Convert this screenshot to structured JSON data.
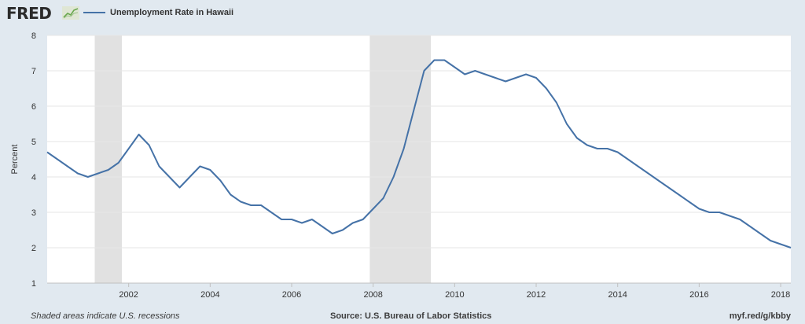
{
  "header": {
    "logo": "FRED",
    "logo_icon": "line-chart-icon"
  },
  "colors": {
    "background": "#e1e9f0",
    "plot_background": "#ffffff",
    "series": "#4572a7",
    "recession_shade": "#e1e1e1",
    "grid": "#e6e6e6"
  },
  "footer": {
    "note": "Shaded areas indicate U.S. recessions",
    "source": "Source: U.S. Bureau of Labor Statistics",
    "link": "myf.red/g/kbby"
  },
  "chart_data": {
    "type": "line",
    "title": "",
    "xlabel": "",
    "ylabel": "Percent",
    "ylim": [
      1,
      8
    ],
    "yticks": [
      1,
      2,
      3,
      4,
      5,
      6,
      7,
      8
    ],
    "xlim": [
      "2000-01",
      "2018-04"
    ],
    "xticks": [
      {
        "date": "2002-01",
        "label": "2002"
      },
      {
        "date": "2004-01",
        "label": "2004"
      },
      {
        "date": "2006-01",
        "label": "2006"
      },
      {
        "date": "2008-01",
        "label": "2008"
      },
      {
        "date": "2010-01",
        "label": "2010"
      },
      {
        "date": "2012-01",
        "label": "2012"
      },
      {
        "date": "2014-01",
        "label": "2014"
      },
      {
        "date": "2016-01",
        "label": "2016"
      },
      {
        "date": "2018-01",
        "label": "2018"
      }
    ],
    "grid": true,
    "legend_position": "top-left",
    "recessions": [
      {
        "start": "2001-03",
        "end": "2001-11"
      },
      {
        "start": "2007-12",
        "end": "2009-06"
      }
    ],
    "series": [
      {
        "name": "Unemployment Rate in Hawaii",
        "color": "#4572a7",
        "points": [
          [
            "2000-01",
            4.7
          ],
          [
            "2000-04",
            4.5
          ],
          [
            "2000-07",
            4.3
          ],
          [
            "2000-10",
            4.1
          ],
          [
            "2001-01",
            4.0
          ],
          [
            "2001-04",
            4.1
          ],
          [
            "2001-07",
            4.2
          ],
          [
            "2001-10",
            4.4
          ],
          [
            "2002-01",
            4.8
          ],
          [
            "2002-04",
            5.2
          ],
          [
            "2002-07",
            4.9
          ],
          [
            "2002-10",
            4.3
          ],
          [
            "2003-01",
            4.0
          ],
          [
            "2003-04",
            3.7
          ],
          [
            "2003-07",
            4.0
          ],
          [
            "2003-10",
            4.3
          ],
          [
            "2004-01",
            4.2
          ],
          [
            "2004-04",
            3.9
          ],
          [
            "2004-07",
            3.5
          ],
          [
            "2004-10",
            3.3
          ],
          [
            "2005-01",
            3.2
          ],
          [
            "2005-04",
            3.2
          ],
          [
            "2005-07",
            3.0
          ],
          [
            "2005-10",
            2.8
          ],
          [
            "2006-01",
            2.8
          ],
          [
            "2006-04",
            2.7
          ],
          [
            "2006-07",
            2.8
          ],
          [
            "2006-10",
            2.6
          ],
          [
            "2007-01",
            2.4
          ],
          [
            "2007-04",
            2.5
          ],
          [
            "2007-07",
            2.7
          ],
          [
            "2007-10",
            2.8
          ],
          [
            "2008-01",
            3.1
          ],
          [
            "2008-04",
            3.4
          ],
          [
            "2008-07",
            4.0
          ],
          [
            "2008-10",
            4.8
          ],
          [
            "2009-01",
            5.9
          ],
          [
            "2009-04",
            7.0
          ],
          [
            "2009-07",
            7.3
          ],
          [
            "2009-10",
            7.3
          ],
          [
            "2010-01",
            7.1
          ],
          [
            "2010-04",
            6.9
          ],
          [
            "2010-07",
            7.0
          ],
          [
            "2010-10",
            6.9
          ],
          [
            "2011-01",
            6.8
          ],
          [
            "2011-04",
            6.7
          ],
          [
            "2011-07",
            6.8
          ],
          [
            "2011-10",
            6.9
          ],
          [
            "2012-01",
            6.8
          ],
          [
            "2012-04",
            6.5
          ],
          [
            "2012-07",
            6.1
          ],
          [
            "2012-10",
            5.5
          ],
          [
            "2013-01",
            5.1
          ],
          [
            "2013-04",
            4.9
          ],
          [
            "2013-07",
            4.8
          ],
          [
            "2013-10",
            4.8
          ],
          [
            "2014-01",
            4.7
          ],
          [
            "2014-04",
            4.5
          ],
          [
            "2014-07",
            4.3
          ],
          [
            "2014-10",
            4.1
          ],
          [
            "2015-01",
            3.9
          ],
          [
            "2015-04",
            3.7
          ],
          [
            "2015-07",
            3.5
          ],
          [
            "2015-10",
            3.3
          ],
          [
            "2016-01",
            3.1
          ],
          [
            "2016-04",
            3.0
          ],
          [
            "2016-07",
            3.0
          ],
          [
            "2016-10",
            2.9
          ],
          [
            "2017-01",
            2.8
          ],
          [
            "2017-04",
            2.6
          ],
          [
            "2017-07",
            2.4
          ],
          [
            "2017-10",
            2.2
          ],
          [
            "2018-01",
            2.1
          ],
          [
            "2018-04",
            2.0
          ]
        ]
      }
    ]
  }
}
